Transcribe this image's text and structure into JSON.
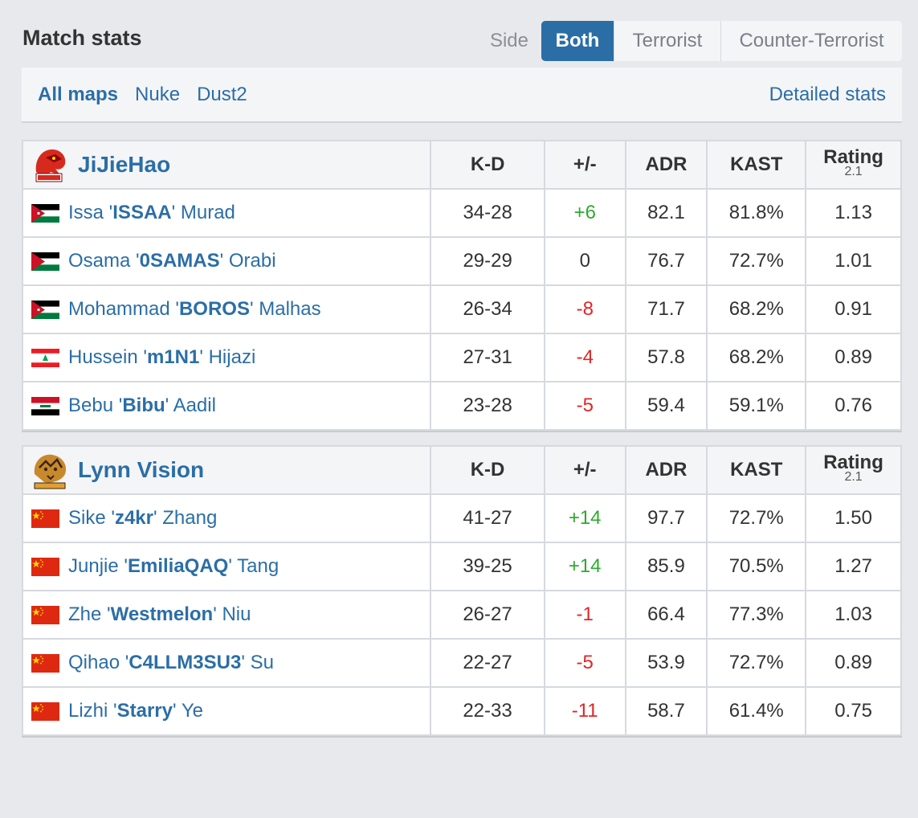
{
  "header": {
    "title": "Match stats",
    "side_label": "Side",
    "side_options": [
      "Both",
      "Terrorist",
      "Counter-Terrorist"
    ],
    "side_selected": "Both"
  },
  "maps": {
    "items": [
      "All maps",
      "Nuke",
      "Dust2"
    ],
    "selected": "All maps",
    "detailed_link": "Detailed stats"
  },
  "columns": {
    "kd": "K-D",
    "pm": "+/-",
    "adr": "ADR",
    "kast": "KAST",
    "rating": "Rating",
    "rating_version": "2.1"
  },
  "colors": {
    "accent": "#2b6ea6",
    "positive": "#2eaa2e",
    "negative": "#e02626"
  },
  "teams": [
    {
      "name": "JiJieHao",
      "logo_icon": "jijiehao-dragon-logo",
      "players": [
        {
          "first": "Issa",
          "nick": "ISSAA",
          "last": "Murad",
          "flag": "jordan-flag",
          "kd": "34-28",
          "pm": "+6",
          "adr": "82.1",
          "kast": "81.8%",
          "rating": "1.13"
        },
        {
          "first": "Osama",
          "nick": "0SAMAS",
          "last": "Orabi",
          "flag": "palestine-flag",
          "kd": "29-29",
          "pm": "0",
          "adr": "76.7",
          "kast": "72.7%",
          "rating": "1.01"
        },
        {
          "first": "Mohammad",
          "nick": "BOROS",
          "last": "Malhas",
          "flag": "jordan-flag",
          "kd": "26-34",
          "pm": "-8",
          "adr": "71.7",
          "kast": "68.2%",
          "rating": "0.91"
        },
        {
          "first": "Hussein",
          "nick": "m1N1",
          "last": "Hijazi",
          "flag": "lebanon-flag",
          "kd": "27-31",
          "pm": "-4",
          "adr": "57.8",
          "kast": "68.2%",
          "rating": "0.89"
        },
        {
          "first": "Bebu",
          "nick": "Bibu",
          "last": "Aadil",
          "flag": "iraq-flag",
          "kd": "23-28",
          "pm": "-5",
          "adr": "59.4",
          "kast": "59.1%",
          "rating": "0.76"
        }
      ]
    },
    {
      "name": "Lynn Vision",
      "logo_icon": "lynn-vision-tiger-logo",
      "players": [
        {
          "first": "Sike",
          "nick": "z4kr",
          "last": "Zhang",
          "flag": "china-flag",
          "kd": "41-27",
          "pm": "+14",
          "adr": "97.7",
          "kast": "72.7%",
          "rating": "1.50"
        },
        {
          "first": "Junjie",
          "nick": "EmiliaQAQ",
          "last": "Tang",
          "flag": "china-flag",
          "kd": "39-25",
          "pm": "+14",
          "adr": "85.9",
          "kast": "70.5%",
          "rating": "1.27"
        },
        {
          "first": "Zhe",
          "nick": "Westmelon",
          "last": "Niu",
          "flag": "china-flag",
          "kd": "26-27",
          "pm": "-1",
          "adr": "66.4",
          "kast": "77.3%",
          "rating": "1.03"
        },
        {
          "first": "Qihao",
          "nick": "C4LLM3SU3",
          "last": "Su",
          "flag": "china-flag",
          "kd": "22-27",
          "pm": "-5",
          "adr": "53.9",
          "kast": "72.7%",
          "rating": "0.89"
        },
        {
          "first": "Lizhi",
          "nick": "Starry",
          "last": "Ye",
          "flag": "china-flag",
          "kd": "22-33",
          "pm": "-11",
          "adr": "58.7",
          "kast": "61.4%",
          "rating": "0.75"
        }
      ]
    }
  ]
}
